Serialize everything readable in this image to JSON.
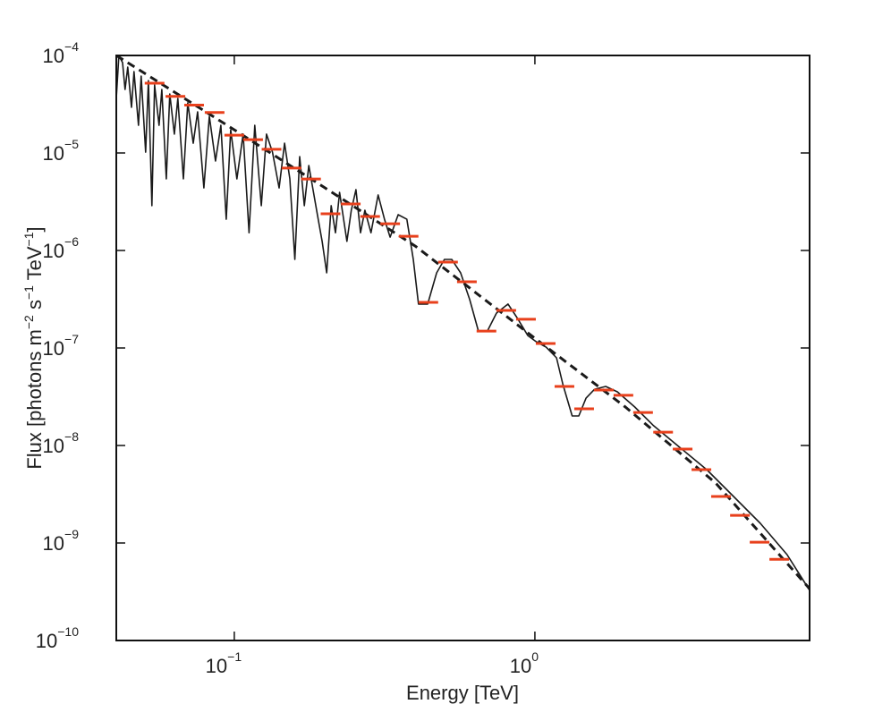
{
  "chart_data": {
    "type": "line",
    "x_label": "Energy [TeV]",
    "y_label": [
      "Flux [photons m",
      "−2",
      " s",
      "−1",
      " TeV",
      "−1",
      "]"
    ],
    "xscale": "log",
    "yscale": "log",
    "xlim": [
      0.0405,
      8.2
    ],
    "ylim": [
      1e-10,
      0.0001
    ],
    "xticks": [
      {
        "value": 0.1,
        "label": "10",
        "exponent": "−1"
      },
      {
        "value": 1,
        "label": "10",
        "exponent": "0"
      }
    ],
    "yticks": [
      {
        "value": 1e-10,
        "label": "10",
        "exponent": "−10"
      },
      {
        "value": 1e-09,
        "label": "10",
        "exponent": "−9"
      },
      {
        "value": 1e-08,
        "label": "10",
        "exponent": "−8"
      },
      {
        "value": 1e-07,
        "label": "10",
        "exponent": "−7"
      },
      {
        "value": 1e-06,
        "label": "10",
        "exponent": "−6"
      },
      {
        "value": 1e-05,
        "label": "10",
        "exponent": "−5"
      },
      {
        "value": 0.0001,
        "label": "10",
        "exponent": "−4"
      }
    ],
    "series": [
      {
        "style": "solid",
        "color": "#1a1a1a",
        "x": [
          0.0405,
          0.0413,
          0.0425,
          0.0433,
          0.0442,
          0.0455,
          0.0464,
          0.048,
          0.049,
          0.0507,
          0.0518,
          0.0532,
          0.0543,
          0.0562,
          0.0574,
          0.0594,
          0.061,
          0.0632,
          0.0649,
          0.0677,
          0.07,
          0.073,
          0.0755,
          0.0792,
          0.0826,
          0.0866,
          0.0902,
          0.094,
          0.0973,
          0.102,
          0.107,
          0.112,
          0.117,
          0.123,
          0.128,
          0.134,
          0.141,
          0.147,
          0.153,
          0.159,
          0.165,
          0.171,
          0.177,
          0.189,
          0.196,
          0.203,
          0.21,
          0.217,
          0.224,
          0.237,
          0.245,
          0.254,
          0.263,
          0.272,
          0.285,
          0.301,
          0.316,
          0.33,
          0.351,
          0.375,
          0.394,
          0.41,
          0.44,
          0.471,
          0.5,
          0.529,
          0.566,
          0.607,
          0.649,
          0.695,
          0.745,
          0.814,
          0.872,
          0.947,
          1.01,
          1.09,
          1.18,
          1.24,
          1.33,
          1.4,
          1.48,
          1.58,
          1.72,
          1.88,
          2.15,
          2.47,
          3.03,
          3.73,
          4.58,
          5.62,
          6.9,
          8.2
        ],
        "values": [
          3.63e-05,
          0.0001,
          8.45e-05,
          4.48e-05,
          7.6e-05,
          2.94e-05,
          6.84e-05,
          1.92e-05,
          6.15e-05,
          1.02e-05,
          5.53e-05,
          2.88e-06,
          4.98e-05,
          1.92e-05,
          4.48e-05,
          5.42e-06,
          4.03e-05,
          1.56e-05,
          3.63e-05,
          5.42e-06,
          3.27e-05,
          1.26e-05,
          2.64e-05,
          4.38e-06,
          2.38e-05,
          8.26e-06,
          1.92e-05,
          2.09e-06,
          1.73e-05,
          5.42e-06,
          1.56e-05,
          1.52e-06,
          1.92e-05,
          2.88e-06,
          1.56e-05,
          1.02e-05,
          4.38e-06,
          1.26e-05,
          5.42e-06,
          8.09e-07,
          9.18e-06,
          2.88e-06,
          7.44e-06,
          2.33e-06,
          1.24e-06,
          5.9e-07,
          2.88e-06,
          1.52e-06,
          3.95e-06,
          1.24e-06,
          2.59e-06,
          4.21e-06,
          1.52e-06,
          2.59e-06,
          1.52e-06,
          3.71e-06,
          2.09e-06,
          1.37e-06,
          2.33e-06,
          2.09e-06,
          8.09e-07,
          2.82e-07,
          2.82e-07,
          5.9e-07,
          8.09e-07,
          8.09e-07,
          5.9e-07,
          3.13e-07,
          1.49e-07,
          1.49e-07,
          2.28e-07,
          2.82e-07,
          2.05e-07,
          1.34e-07,
          1.16e-07,
          1.02e-07,
          7.93e-08,
          4.21e-08,
          2.01e-08,
          2.01e-08,
          3.06e-08,
          3.78e-08,
          4.03e-08,
          3.55e-08,
          2.48e-08,
          1.62e-08,
          9.59e-09,
          5.65e-09,
          3e-09,
          1.59e-09,
          7.6e-10,
          3.27e-10
        ]
      },
      {
        "style": "dashed",
        "color": "#1a1a1a",
        "x": [
          0.0405,
          0.1,
          0.2,
          0.4,
          1,
          2,
          4,
          8.2
        ],
        "values": [
          0.0001,
          1.73e-05,
          4.4e-06,
          1.11e-06,
          1.26e-07,
          2.48e-08,
          4.1e-09,
          3.4e-10
        ]
      },
      {
        "style": "points",
        "color": "#e8401c",
        "x": [
          0.0543,
          0.0637,
          0.0735,
          0.086,
          0.1,
          0.1155,
          0.133,
          0.155,
          0.18,
          0.209,
          0.244,
          0.283,
          0.33,
          0.38,
          0.442,
          0.514,
          0.594,
          0.69,
          0.803,
          0.934,
          1.086,
          1.254,
          1.458,
          1.695,
          1.97,
          2.29,
          2.67,
          3.1,
          3.58,
          4.16,
          4.81,
          5.59,
          6.5
        ],
        "values": [
          5.2e-05,
          3.8e-05,
          3.1e-05,
          2.6e-05,
          1.52e-05,
          1.37e-05,
          1.09e-05,
          7e-06,
          5.4e-06,
          2.38e-06,
          3e-06,
          2.23e-06,
          1.88e-06,
          1.4e-06,
          2.94e-07,
          7.6e-07,
          4.77e-07,
          1.49e-07,
          2.43e-07,
          1.97e-07,
          1.11e-07,
          4.03e-08,
          2.38e-08,
          3.71e-08,
          3.27e-08,
          2.18e-08,
          1.37e-08,
          9.2e-09,
          5.65e-09,
          3e-09,
          1.92e-09,
          1.02e-09,
          6.8e-10
        ]
      }
    ]
  }
}
